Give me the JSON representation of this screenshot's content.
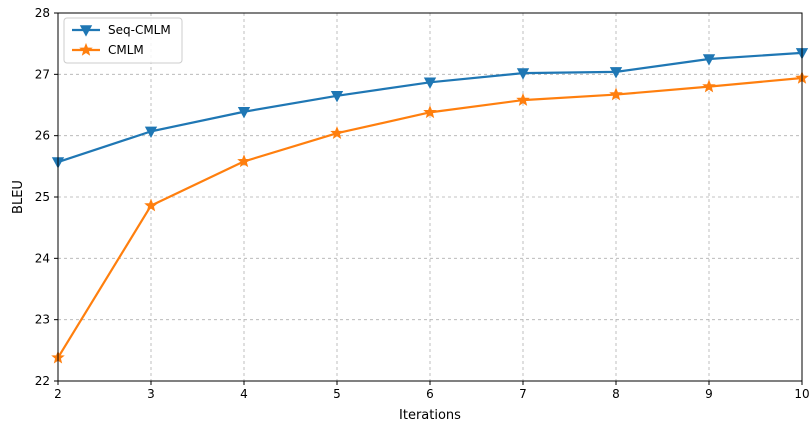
{
  "chart_data": {
    "type": "line",
    "x": [
      2,
      3,
      4,
      5,
      6,
      7,
      8,
      9,
      10
    ],
    "series": [
      {
        "name": "Seq-CMLM",
        "color": "#1f77b4",
        "marker": "triangle-down",
        "values": [
          25.57,
          26.07,
          26.39,
          26.65,
          26.87,
          27.02,
          27.04,
          27.25,
          27.35
        ]
      },
      {
        "name": "CMLM",
        "color": "#ff7f0e",
        "marker": "star",
        "values": [
          22.38,
          24.86,
          25.58,
          26.04,
          26.38,
          26.58,
          26.67,
          26.8,
          26.94
        ]
      }
    ],
    "xlabel": "Iterations",
    "ylabel": "BLEU",
    "xlim": [
      2,
      10
    ],
    "ylim": [
      22,
      28
    ],
    "xticks": [
      "2",
      "3",
      "4",
      "5",
      "6",
      "7",
      "8",
      "9",
      "10"
    ],
    "yticks": [
      "22",
      "23",
      "24",
      "25",
      "26",
      "27",
      "28"
    ],
    "grid": true,
    "legend_position": "top-left"
  }
}
